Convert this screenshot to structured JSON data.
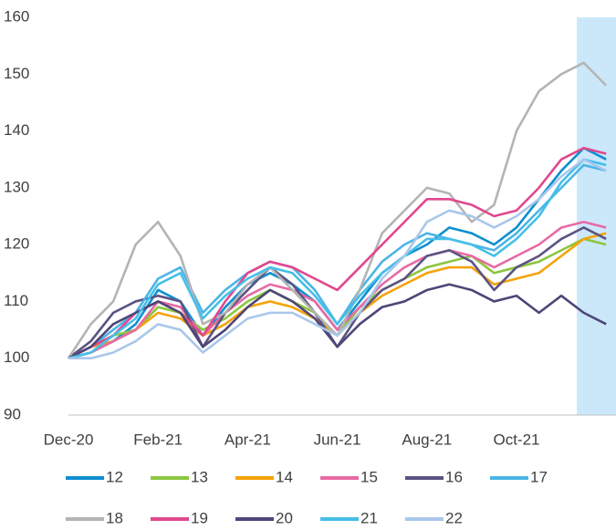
{
  "chart_data": {
    "type": "line",
    "categories": [
      "Dec-20",
      null,
      null,
      null,
      "Feb-21",
      null,
      null,
      null,
      "Apr-21",
      null,
      null,
      null,
      "Jun-21",
      null,
      null,
      null,
      "Aug-21",
      null,
      null,
      null,
      "Oct-21",
      null,
      null,
      null,
      null
    ],
    "ylim": [
      90,
      160
    ],
    "yticks": [
      90,
      100,
      110,
      120,
      130,
      140,
      150,
      160
    ],
    "grid": false,
    "series": [
      {
        "name": "12",
        "color": "#0e8fd0",
        "values": [
          100,
          101,
          103,
          106,
          112,
          110,
          104,
          109,
          113,
          115,
          113,
          110,
          105,
          110,
          115,
          118,
          120,
          123,
          122,
          120,
          123,
          128,
          133,
          137,
          135
        ]
      },
      {
        "name": "13",
        "color": "#8cc63f",
        "values": [
          100,
          102,
          104,
          105,
          109,
          108,
          105,
          107,
          110,
          112,
          110,
          108,
          104,
          109,
          112,
          114,
          116,
          117,
          118,
          115,
          116,
          117,
          119,
          121,
          120
        ]
      },
      {
        "name": "14",
        "color": "#f4a30c",
        "values": [
          100,
          102,
          103,
          105,
          108,
          107,
          104,
          106,
          109,
          110,
          109,
          107,
          104,
          108,
          111,
          113,
          115,
          116,
          116,
          113,
          114,
          115,
          118,
          121,
          122
        ]
      },
      {
        "name": "15",
        "color": "#e86aa4",
        "values": [
          100,
          101,
          103,
          105,
          110,
          109,
          104,
          108,
          111,
          113,
          112,
          110,
          105,
          109,
          113,
          116,
          118,
          119,
          118,
          116,
          118,
          120,
          123,
          124,
          123
        ]
      },
      {
        "name": "16",
        "color": "#5b5383",
        "values": [
          100,
          103,
          108,
          110,
          111,
          110,
          102,
          108,
          112,
          116,
          113,
          108,
          102,
          108,
          112,
          114,
          118,
          119,
          117,
          112,
          116,
          118,
          121,
          123,
          121
        ]
      },
      {
        "name": "17",
        "color": "#4bb5e6",
        "values": [
          100,
          102,
          105,
          108,
          114,
          116,
          108,
          112,
          115,
          117,
          116,
          112,
          106,
          112,
          117,
          120,
          122,
          121,
          120,
          119,
          122,
          126,
          130,
          134,
          133
        ]
      },
      {
        "name": "18",
        "color": "#b4b4b4",
        "values": [
          100,
          106,
          110,
          120,
          124,
          118,
          106,
          108,
          113,
          116,
          112,
          108,
          104,
          112,
          122,
          126,
          130,
          129,
          124,
          127,
          140,
          147,
          150,
          152,
          148
        ]
      },
      {
        "name": "19",
        "color": "#e0488e",
        "values": [
          100,
          102,
          104,
          108,
          110,
          108,
          104,
          110,
          115,
          117,
          116,
          114,
          112,
          116,
          120,
          124,
          128,
          128,
          127,
          125,
          126,
          130,
          135,
          137,
          136
        ]
      },
      {
        "name": "20",
        "color": "#4e4678",
        "values": [
          100,
          102,
          106,
          108,
          110,
          108,
          102,
          105,
          109,
          112,
          110,
          107,
          102,
          106,
          109,
          110,
          112,
          113,
          112,
          110,
          111,
          108,
          111,
          108,
          106
        ]
      },
      {
        "name": "21",
        "color": "#45bfe8",
        "values": [
          100,
          101,
          104,
          107,
          113,
          115,
          107,
          111,
          114,
          116,
          115,
          111,
          106,
          111,
          115,
          118,
          121,
          121,
          120,
          118,
          121,
          125,
          131,
          135,
          134
        ]
      },
      {
        "name": "22",
        "color": "#a9c7ea",
        "values": [
          100,
          100,
          101,
          103,
          106,
          105,
          101,
          104,
          107,
          108,
          108,
          106,
          104,
          108,
          114,
          118,
          124,
          126,
          125,
          123,
          125,
          128,
          132,
          135,
          133
        ]
      }
    ]
  }
}
